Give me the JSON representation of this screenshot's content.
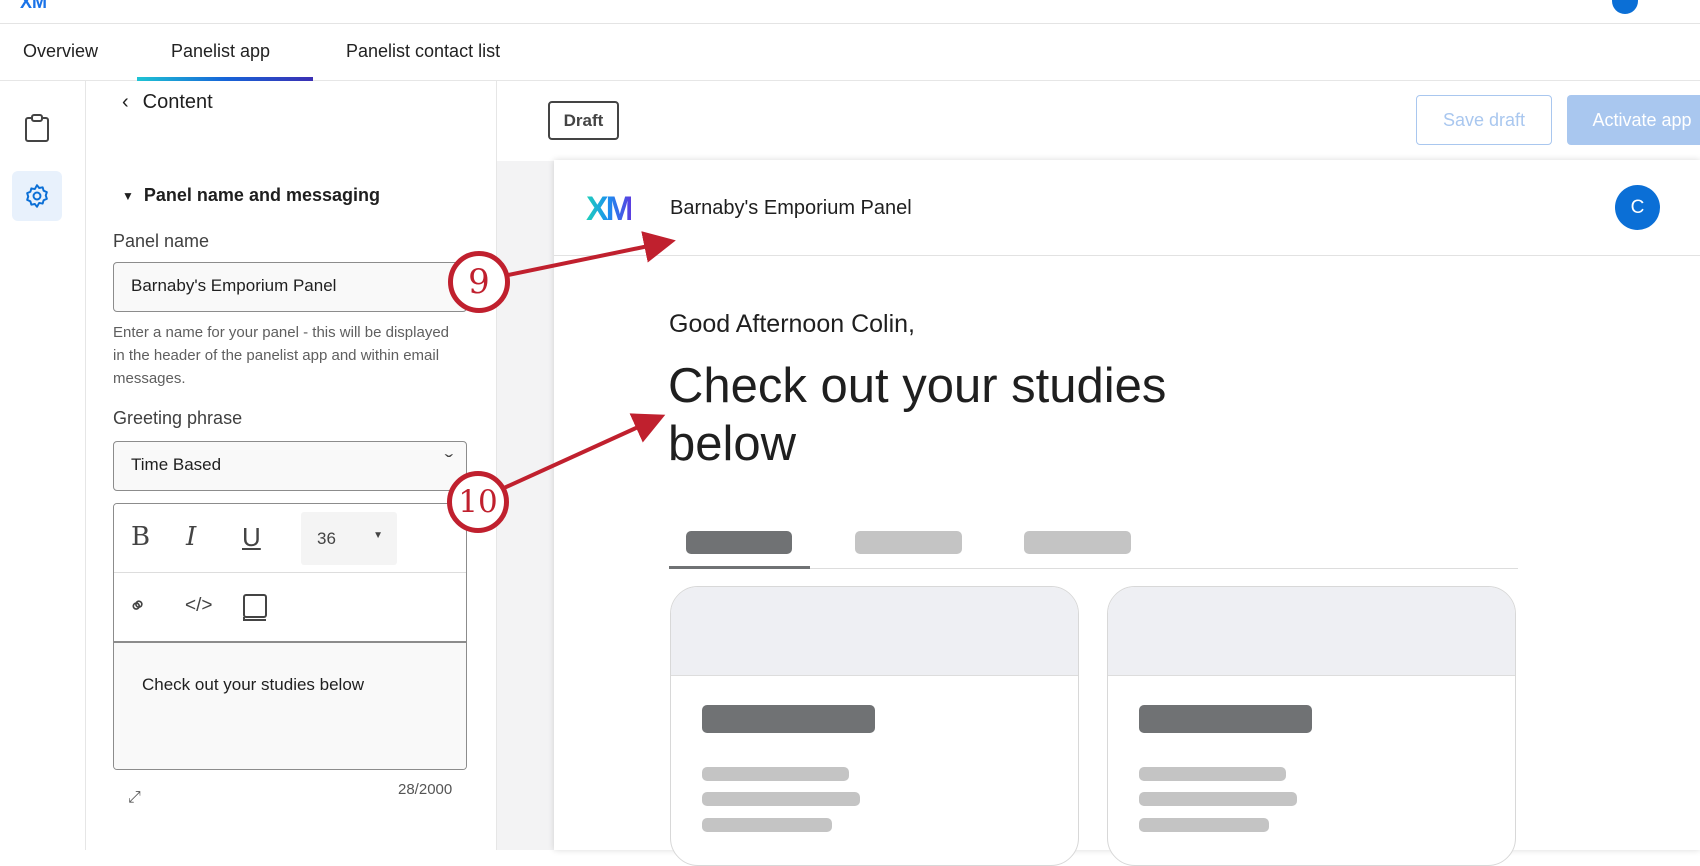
{
  "tabs": [
    {
      "label": "Overview"
    },
    {
      "label": "Panelist app",
      "active": true
    },
    {
      "label": "Panelist contact list"
    }
  ],
  "sidebar": {
    "back_label": "Content",
    "section_title": "Panel name and messaging",
    "panel_name_label": "Panel name",
    "panel_name_value": "Barnaby's Emporium Panel",
    "panel_name_help": "Enter a name for your panel - this will be displayed in the header of the panelist app and within email messages.",
    "greeting_label": "Greeting phrase",
    "greeting_value": "Time Based",
    "editor": {
      "bold": "B",
      "italic": "I",
      "underline": "U",
      "font_size": "36",
      "content": "Check out your studies below",
      "char_count": "28/2000"
    }
  },
  "toolbar": {
    "status_badge": "Draft",
    "save_label": "Save draft",
    "activate_label": "Activate app"
  },
  "preview": {
    "logo": "XM",
    "panel_name": "Barnaby's Emporium Panel",
    "avatar": "C",
    "greeting": "Good Afternoon Colin,",
    "headline": "Check out your studies below"
  },
  "annotations": [
    {
      "number": "9"
    },
    {
      "number": "10"
    }
  ],
  "colors": {
    "accent": "#0b6fd6",
    "annotation": "#c0202e",
    "button_disabled": "#a9c7ef"
  }
}
